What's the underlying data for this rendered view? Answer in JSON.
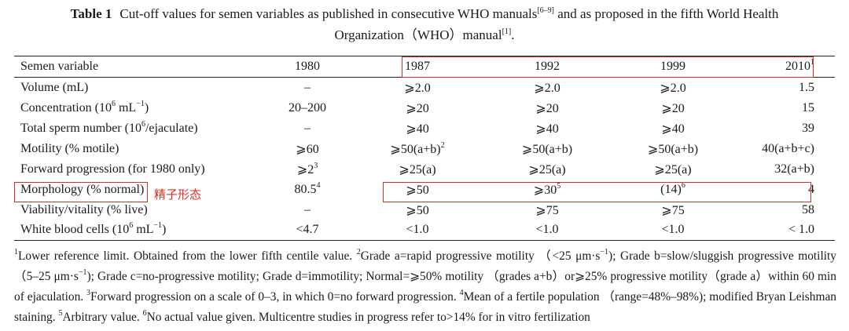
{
  "caption": {
    "label": "Table 1",
    "text_a": "Cut-off values for semen variables as published in consecutive WHO manuals",
    "ref_a": "[6–9]",
    "text_b": " and as proposed in the fifth World Health",
    "text_c": "Organization（WHO）manual",
    "ref_b": "[1]",
    "text_d": "."
  },
  "table": {
    "header": [
      "Semen variable",
      "1980",
      "1987",
      "1992",
      "1999",
      "2010"
    ],
    "header_sup_2010": "1",
    "rows": [
      {
        "label": "Volume (mL)",
        "v1980": "–",
        "v1987": "⩾2.0",
        "v1992": "⩾2.0",
        "v1999": "⩾2.0",
        "v2010": "1.5"
      },
      {
        "label_a": "Concentration (10",
        "label_sup": "6",
        "label_b": " mL",
        "label_sup2": "−1",
        "label_c": ")",
        "v1980": "20–200",
        "v1987": "⩾20",
        "v1992": "⩾20",
        "v1999": "⩾20",
        "v2010": "15"
      },
      {
        "label_a": "Total sperm number (10",
        "label_sup": "6",
        "label_b": "/ejaculate)",
        "v1980": "–",
        "v1987": "⩾40",
        "v1992": "⩾40",
        "v1999": "⩾40",
        "v2010": "39"
      },
      {
        "label": "Motility (% motile)",
        "v1980": "⩾60",
        "v1987": "⩾50(a+b)",
        "v1987_sup": "2",
        "v1992": "⩾50(a+b)",
        "v1999": "⩾50(a+b)",
        "v2010": "40(a+b+c)"
      },
      {
        "label": "Forward progression (for 1980 only)",
        "v1980": "⩾2",
        "v1980_sup": "3",
        "v1987": "⩾25(a)",
        "v1992": "⩾25(a)",
        "v1999": "⩾25(a)",
        "v2010": "32(a+b)"
      },
      {
        "label": "Morphology (% normal)",
        "v1980": "80.5",
        "v1980_sup": "4",
        "v1987": "⩾50",
        "v1992": "⩾30",
        "v1992_sup": "5",
        "v1999": "(14)",
        "v1999_sup": "6",
        "v2010": "4"
      },
      {
        "label": "Viability/vitality (% live)",
        "v1980": "–",
        "v1987": "⩾50",
        "v1992": "⩾75",
        "v1999": "⩾75",
        "v2010": "58"
      },
      {
        "label_a": "White blood cells (10",
        "label_sup": "6",
        "label_b": " mL",
        "label_sup2": "−1",
        "label_c": ")",
        "v1980": "<4.7",
        "v1987": "<1.0",
        "v1992": "<1.0",
        "v1999": "<1.0",
        "v2010": "< 1.0"
      }
    ]
  },
  "annotation": {
    "text": "精子形态",
    "color": "#d93025"
  },
  "footnotes": {
    "s1": "1",
    "t1": "Lower reference limit. Obtained from the lower fifth centile value. ",
    "s2": "2",
    "t2": "Grade a=rapid progressive motility （<25 μm·s",
    "t2_sup": "−1",
    "t3": "); Grade b=slow/sluggish progressive motility （5–25 μm·s",
    "t3_sup": "−1",
    "t4": "); Grade c=no-progressive motility; Grade d=immotility; Normal=⩾50% motility （grades a+b）or⩾25% progressive motility（grade a）within 60 min of ejaculation. ",
    "s3": "3",
    "t5": "Forward progression on a scale of 0–3, in which 0=no forward progression. ",
    "s4": "4",
    "t6": "Mean of a fertile population （range=48%–98%); modified Bryan Leishman staining. ",
    "s5": "5",
    "t7": "Arbitrary value. ",
    "s6": "6",
    "t8": "No actual value given. Multicentre studies in progress refer to>14% for in vitro fertilization"
  }
}
